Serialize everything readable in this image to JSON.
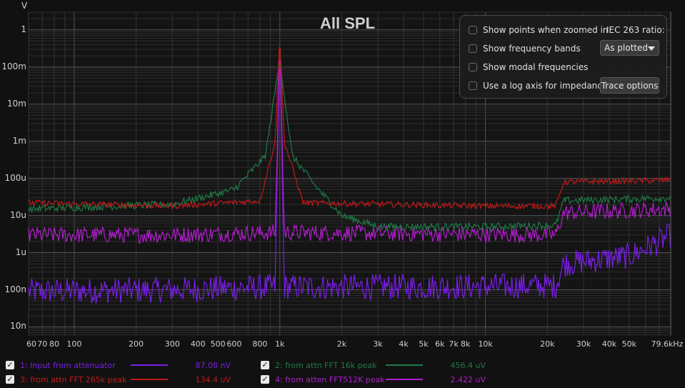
{
  "title": "All SPL",
  "y_unit": "V",
  "overlay": {
    "options": [
      {
        "label": "Show points when zoomed in",
        "checked": false
      },
      {
        "label": "Show frequency bands",
        "checked": false
      },
      {
        "label": "Show modal frequencies",
        "checked": false
      },
      {
        "label": "Use a log axis for impedance",
        "checked": false
      }
    ],
    "iec_label": "IEC 263 ratio:",
    "iec_value": "As plotted",
    "trace_options_label": "Trace options"
  },
  "chart_data": {
    "type": "line",
    "title": "All SPL",
    "ylabel": "V",
    "xlabel": "",
    "x_scale": "log",
    "y_scale": "log",
    "xlim": [
      60,
      79600
    ],
    "ylim": [
      6e-09,
      3
    ],
    "y_ticks": [
      {
        "value": 1,
        "label": "1"
      },
      {
        "value": 0.1,
        "label": "100m"
      },
      {
        "value": 0.01,
        "label": "10m"
      },
      {
        "value": 0.001,
        "label": "1m"
      },
      {
        "value": 0.0001,
        "label": "100u"
      },
      {
        "value": 1e-05,
        "label": "10u"
      },
      {
        "value": 1e-06,
        "label": "1u"
      },
      {
        "value": 1e-07,
        "label": "100n"
      },
      {
        "value": 1e-08,
        "label": "10n"
      }
    ],
    "x_ticks": [
      {
        "value": 60,
        "label": "60"
      },
      {
        "value": 70,
        "label": "70"
      },
      {
        "value": 80,
        "label": "80"
      },
      {
        "value": 100,
        "label": "100"
      },
      {
        "value": 200,
        "label": "200"
      },
      {
        "value": 300,
        "label": "300"
      },
      {
        "value": 400,
        "label": "400"
      },
      {
        "value": 500,
        "label": "500"
      },
      {
        "value": 600,
        "label": "600"
      },
      {
        "value": 800,
        "label": "800"
      },
      {
        "value": 1000,
        "label": "1k"
      },
      {
        "value": 2000,
        "label": "2k"
      },
      {
        "value": 3000,
        "label": "3k"
      },
      {
        "value": 4000,
        "label": "4k"
      },
      {
        "value": 5000,
        "label": "5k"
      },
      {
        "value": 6000,
        "label": "6k"
      },
      {
        "value": 7000,
        "label": "7k"
      },
      {
        "value": 8000,
        "label": "8k"
      },
      {
        "value": 10000,
        "label": "10k"
      },
      {
        "value": 20000,
        "label": "20k"
      },
      {
        "value": 30000,
        "label": "30k"
      },
      {
        "value": 40000,
        "label": "40k"
      },
      {
        "value": 50000,
        "label": "50k"
      },
      {
        "value": 79600,
        "label": "79.6kHz"
      }
    ],
    "series": [
      {
        "id": 1,
        "name": "1: Input from attenuator",
        "value": "87.08 nV",
        "color": "#7a1ee8",
        "points": [
          [
            60,
            9e-08
          ],
          [
            300,
            1e-07
          ],
          [
            950,
            1.2e-07
          ],
          [
            1000,
            0.6
          ],
          [
            1050,
            1.2e-07
          ],
          [
            5000,
            1.2e-07
          ],
          [
            22000,
            1.3e-07
          ],
          [
            24000,
            5e-07
          ],
          [
            50000,
            8e-07
          ],
          [
            70000,
            2e-06
          ],
          [
            79600,
            3e-06
          ]
        ]
      },
      {
        "id": 2,
        "name": "2: from attn FFT 16k peak",
        "value": "456.4 uV",
        "color": "#1e7a46",
        "points": [
          [
            60,
            1.5e-05
          ],
          [
            300,
            2e-05
          ],
          [
            600,
            5e-05
          ],
          [
            850,
            0.0004
          ],
          [
            1000,
            0.15
          ],
          [
            1150,
            0.0004
          ],
          [
            1500,
            6e-05
          ],
          [
            2000,
            1e-05
          ],
          [
            3000,
            5e-06
          ],
          [
            10000,
            5e-06
          ],
          [
            22000,
            5.5e-06
          ],
          [
            24000,
            2.5e-05
          ],
          [
            79600,
            3e-05
          ]
        ]
      },
      {
        "id": 3,
        "name": "3: from attn FFT 265k peak",
        "value": "134.4 uV",
        "color": "#c01a1a",
        "points": [
          [
            60,
            2.2e-05
          ],
          [
            300,
            1.8e-05
          ],
          [
            800,
            2.5e-05
          ],
          [
            950,
            0.001
          ],
          [
            1000,
            0.7
          ],
          [
            1050,
            0.001
          ],
          [
            1300,
            2.2e-05
          ],
          [
            10000,
            1.8e-05
          ],
          [
            22000,
            1.8e-05
          ],
          [
            24000,
            8e-05
          ],
          [
            79600,
            9e-05
          ]
        ]
      },
      {
        "id": 4,
        "name": "4: from atten FFT512K peak",
        "value": "2.422 uV",
        "color": "#b01ecc",
        "points": [
          [
            60,
            3e-06
          ],
          [
            300,
            3e-06
          ],
          [
            950,
            3.5e-06
          ],
          [
            1000,
            0.6
          ],
          [
            1050,
            3.5e-06
          ],
          [
            22000,
            3e-06
          ],
          [
            24000,
            1.2e-05
          ],
          [
            79600,
            1.5e-05
          ]
        ]
      }
    ]
  }
}
